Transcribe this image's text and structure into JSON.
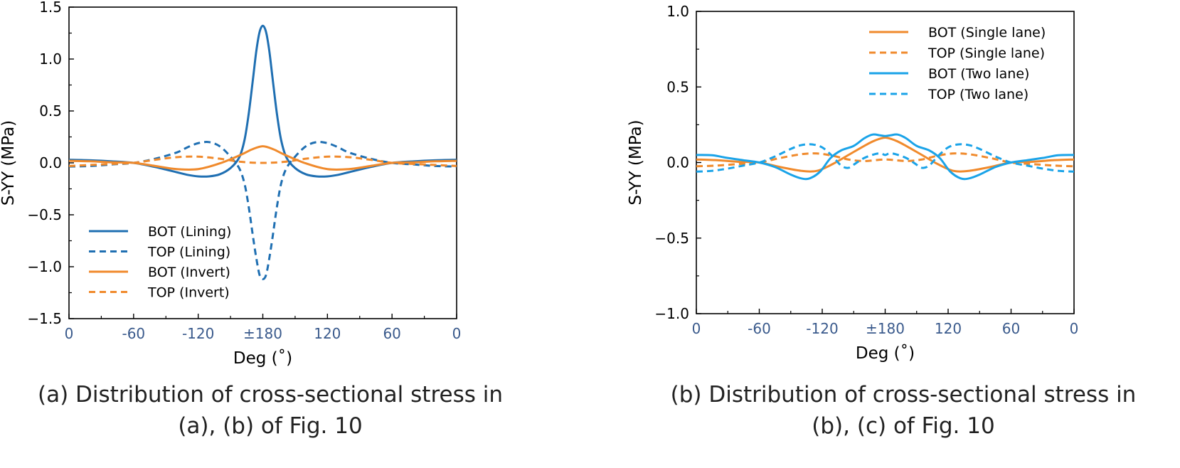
{
  "chart_data": [
    {
      "type": "line",
      "caption": [
        "(a) Distribution of cross-sectional stress in",
        "(a), (b) of Fig. 10"
      ],
      "xlabel": "Deg (˚)",
      "ylabel": "S-YY (MPa)",
      "xticks": [
        "0",
        "-60",
        "-120",
        "±180",
        "120",
        "60",
        "0"
      ],
      "yticks": [
        "1.5",
        "1.0",
        "0.5",
        "0.0",
        "-0.5",
        "-1.0",
        "-1.5"
      ],
      "ylim": [
        -1.5,
        1.5
      ],
      "x_positions": [
        0,
        60,
        120,
        180,
        240,
        300,
        360
      ],
      "legend_position": "bottom-left",
      "series": [
        {
          "name": "BOT (Lining)",
          "color": "#1f6fb2",
          "dash": false,
          "x": [
            0,
            20,
            40,
            60,
            80,
            100,
            110,
            120,
            130,
            140,
            150,
            158,
            163,
            167,
            171,
            174,
            177,
            180,
            183,
            186,
            189,
            193,
            197,
            202,
            210,
            220,
            230,
            240,
            250,
            260,
            280,
            300,
            320,
            340,
            360
          ],
          "y": [
            0.03,
            0.025,
            0.015,
            0.0,
            -0.04,
            -0.09,
            -0.115,
            -0.13,
            -0.13,
            -0.11,
            -0.05,
            0.05,
            0.22,
            0.48,
            0.82,
            1.08,
            1.26,
            1.32,
            1.26,
            1.08,
            0.82,
            0.48,
            0.22,
            0.05,
            -0.05,
            -0.11,
            -0.13,
            -0.13,
            -0.115,
            -0.09,
            -0.04,
            0.0,
            0.015,
            0.025,
            0.03
          ]
        },
        {
          "name": "TOP (Lining)",
          "color": "#1f6fb2",
          "dash": true,
          "x": [
            0,
            20,
            40,
            60,
            80,
            100,
            110,
            120,
            130,
            140,
            150,
            158,
            163,
            167,
            171,
            174,
            177,
            180,
            183,
            186,
            189,
            193,
            197,
            202,
            210,
            220,
            230,
            240,
            250,
            260,
            280,
            300,
            320,
            340,
            360
          ],
          "y": [
            -0.035,
            -0.03,
            -0.015,
            0.0,
            0.04,
            0.1,
            0.15,
            0.19,
            0.2,
            0.16,
            0.06,
            -0.05,
            -0.2,
            -0.43,
            -0.72,
            -0.92,
            -1.08,
            -1.12,
            -1.08,
            -0.92,
            -0.72,
            -0.43,
            -0.2,
            -0.05,
            0.06,
            0.16,
            0.2,
            0.19,
            0.15,
            0.1,
            0.04,
            0.0,
            -0.015,
            -0.03,
            -0.035
          ]
        },
        {
          "name": "BOT (Invert)",
          "color": "#f08a2c",
          "dash": false,
          "x": [
            0,
            20,
            40,
            60,
            80,
            100,
            120,
            140,
            160,
            170,
            180,
            190,
            200,
            220,
            240,
            260,
            280,
            300,
            320,
            340,
            360
          ],
          "y": [
            0.02,
            0.015,
            0.005,
            0.0,
            -0.03,
            -0.06,
            -0.06,
            -0.005,
            0.08,
            0.13,
            0.16,
            0.13,
            0.08,
            -0.005,
            -0.06,
            -0.06,
            -0.03,
            0.0,
            0.005,
            0.015,
            0.02
          ]
        },
        {
          "name": "TOP (Invert)",
          "color": "#f08a2c",
          "dash": true,
          "x": [
            0,
            20,
            40,
            60,
            80,
            100,
            120,
            140,
            160,
            180,
            200,
            220,
            240,
            260,
            280,
            300,
            320,
            340,
            360
          ],
          "y": [
            -0.03,
            -0.02,
            -0.01,
            0.0,
            0.03,
            0.055,
            0.06,
            0.04,
            0.01,
            0.0,
            0.01,
            0.04,
            0.06,
            0.055,
            0.03,
            0.0,
            -0.01,
            -0.02,
            -0.03
          ]
        }
      ]
    },
    {
      "type": "line",
      "caption": [
        "(b) Distribution of cross-sectional stress in",
        "(b), (c) of Fig. 10"
      ],
      "xlabel": "Deg (˚)",
      "ylabel": "S-YY (MPa)",
      "xticks": [
        "0",
        "-60",
        "-120",
        "±180",
        "120",
        "60",
        "0"
      ],
      "yticks": [
        "1.0",
        "0.5",
        "0.0",
        "-0.5",
        "-1.0"
      ],
      "ylim": [
        -1.0,
        1.0
      ],
      "x_positions": [
        0,
        60,
        120,
        180,
        240,
        300,
        360
      ],
      "legend_position": "top-right",
      "series": [
        {
          "name": "BOT (Single lane)",
          "color": "#f08a2c",
          "dash": false,
          "x": [
            0,
            20,
            40,
            60,
            80,
            100,
            115,
            130,
            145,
            160,
            170,
            180,
            190,
            200,
            215,
            230,
            245,
            260,
            280,
            300,
            320,
            340,
            360
          ],
          "y": [
            0.02,
            0.015,
            0.005,
            0.0,
            -0.03,
            -0.055,
            -0.055,
            -0.01,
            0.05,
            0.11,
            0.145,
            0.165,
            0.145,
            0.11,
            0.05,
            -0.01,
            -0.055,
            -0.055,
            -0.03,
            0.0,
            0.005,
            0.015,
            0.02
          ]
        },
        {
          "name": "TOP (Single lane)",
          "color": "#f08a2c",
          "dash": true,
          "x": [
            0,
            20,
            40,
            60,
            80,
            100,
            115,
            130,
            145,
            160,
            180,
            200,
            215,
            230,
            245,
            260,
            280,
            300,
            320,
            340,
            360
          ],
          "y": [
            -0.025,
            -0.02,
            -0.01,
            0.0,
            0.03,
            0.055,
            0.06,
            0.045,
            0.02,
            0.01,
            0.02,
            0.01,
            0.02,
            0.045,
            0.06,
            0.055,
            0.03,
            0.0,
            -0.01,
            -0.02,
            -0.025
          ]
        },
        {
          "name": "BOT (Two lane)",
          "color": "#1aa3e8",
          "dash": false,
          "x": [
            0,
            15,
            30,
            45,
            60,
            75,
            90,
            100,
            108,
            118,
            128,
            138,
            150,
            160,
            168,
            175,
            180,
            185,
            192,
            200,
            210,
            222,
            232,
            242,
            252,
            260,
            270,
            285,
            300,
            315,
            330,
            345,
            360
          ],
          "y": [
            0.05,
            0.048,
            0.03,
            0.015,
            0.0,
            -0.03,
            -0.08,
            -0.105,
            -0.105,
            -0.06,
            0.03,
            0.08,
            0.11,
            0.16,
            0.185,
            0.18,
            0.175,
            0.18,
            0.185,
            0.16,
            0.11,
            0.08,
            0.03,
            -0.06,
            -0.105,
            -0.105,
            -0.08,
            -0.03,
            0.0,
            0.015,
            0.03,
            0.048,
            0.05
          ]
        },
        {
          "name": "TOP (Two lane)",
          "color": "#1aa3e8",
          "dash": true,
          "x": [
            0,
            15,
            30,
            45,
            60,
            75,
            90,
            100,
            110,
            120,
            130,
            138,
            145,
            152,
            160,
            170,
            176,
            180,
            184,
            190,
            200,
            208,
            215,
            222,
            230,
            240,
            250,
            260,
            270,
            285,
            300,
            315,
            330,
            345,
            360
          ],
          "y": [
            -0.06,
            -0.055,
            -0.04,
            -0.02,
            0.0,
            0.04,
            0.09,
            0.115,
            0.12,
            0.1,
            0.04,
            -0.02,
            -0.035,
            -0.005,
            0.03,
            0.055,
            0.06,
            0.05,
            0.06,
            0.055,
            0.03,
            -0.005,
            -0.035,
            -0.02,
            0.04,
            0.1,
            0.12,
            0.115,
            0.09,
            0.04,
            0.0,
            -0.02,
            -0.04,
            -0.055,
            -0.06
          ]
        }
      ]
    }
  ]
}
